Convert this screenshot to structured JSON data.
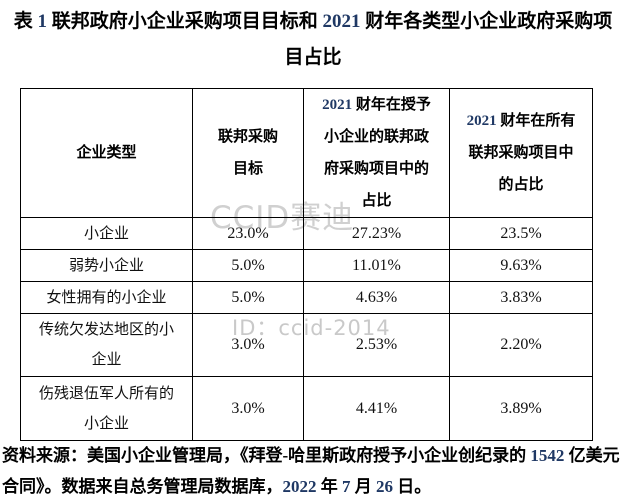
{
  "title": "表 1 联邦政府小企业采购项目目标和 2021 财年各类型小企业政府采购项\n目占比",
  "table": {
    "headers": [
      "企业类型",
      "联邦采购\n目标",
      "2021 财年在授予\n小企业的联邦政\n府采购项目中的\n占比",
      "2021 财年在所有\n联邦采购项目中\n的占比"
    ],
    "rows": [
      [
        "小企业",
        "23.0%",
        "27.23%",
        "23.5%"
      ],
      [
        "弱势小企业",
        "5.0%",
        "11.01%",
        "9.63%"
      ],
      [
        "女性拥有的小企业",
        "5.0%",
        "4.63%",
        "3.83%"
      ],
      [
        "传统欠发达地区的小\n企业",
        "3.0%",
        "2.53%",
        "2.20%"
      ],
      [
        "伤残退伍军人所有的\n小企业",
        "3.0%",
        "4.41%",
        "3.89%"
      ]
    ]
  },
  "source_note": "资料来源：美国小企业管理局，《拜登-哈里斯政府授予小企业创纪录的 1542 亿美元\n合同》。数据来自总务管理局数据库，2022 年 7 月 26 日。",
  "watermarks": {
    "brand": "CCID赛迪",
    "id_text": "ID：ccid-2014"
  },
  "colors": {
    "number_accent": "#1f3864",
    "body_text": "#111111",
    "border": "#000000",
    "watermark_gray": "#cdcdcd"
  },
  "chart_data": {
    "type": "table",
    "title": "表 1 联邦政府小企业采购项目目标和 2021 财年各类型小企业政府采购项目占比",
    "columns": [
      "企业类型",
      "联邦采购目标",
      "2021 财年在授予小企业的联邦政府采购项目中的占比",
      "2021 财年在所有联邦采购项目中的占比"
    ],
    "rows": [
      [
        "小企业",
        23.0,
        27.23,
        23.5
      ],
      [
        "弱势小企业",
        5.0,
        11.01,
        9.63
      ],
      [
        "女性拥有的小企业",
        5.0,
        4.63,
        3.83
      ],
      [
        "传统欠发达地区的小企业",
        3.0,
        2.53,
        2.2
      ],
      [
        "伤残退伍军人所有的小企业",
        3.0,
        4.41,
        3.89
      ]
    ],
    "unit": "%"
  }
}
